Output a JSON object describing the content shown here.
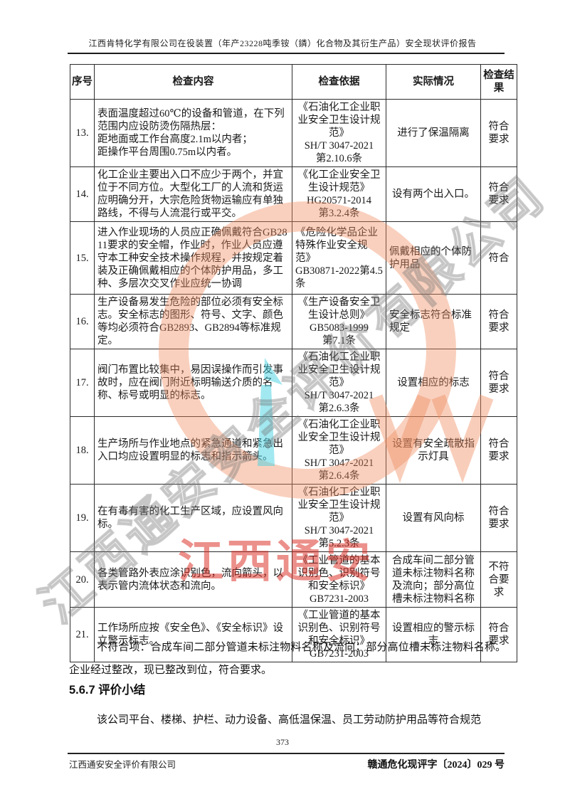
{
  "page": {
    "header_title": "江西肯特化学有限公司在役装置（年产23228吨季铵（鏻）化合物及其衍生产品）安全现状评价报告",
    "page_number": "373",
    "footer_left": "江西通安安全评价有限公司",
    "footer_right": "赣通危化现评字〔2024〕029 号"
  },
  "table": {
    "headers": [
      "序号",
      "检查内容",
      "检查依据",
      "实际情况",
      "检查结果"
    ],
    "rows": [
      {
        "no": "13.",
        "content": "表面温度超过60℃的设备和管道，在下列范围内应设防烫伤隔热层：\n距地面或工作台高度2.1m以内者；\n距操作平台周围0.75m以内者。",
        "basis": "《石油化工企业职业安全卫生设计规范》\nSH/T 3047-2021\n第2.10.6条",
        "actual": "进行了保温隔离",
        "result": "符合要求"
      },
      {
        "no": "14.",
        "content": "化工企业主要出入口不应少于两个，并宜位于不同方位。大型化工厂的人流和货运应明确分开，大宗危险货物运输应有单独路线，不得与人流混行或平交。",
        "basis": "《化工企业安全卫生设计规范》\nHG20571-2014\n第3.2.4条",
        "actual": "设有两个出入口。",
        "result": "符合要求"
      },
      {
        "no": "15.",
        "content": "进入作业现场的人员应正确佩戴符合GB2811要求的安全帽，作业时，作业人员应遵守本工种安全技术操作规程，并按规定着装及正确佩戴相应的个体防护用品，多工种、多层次交叉作业应统一协调",
        "basis": "《危险化学品企业特殊作业安全规范》\nGB30871-2022第4.5条",
        "basis_align": "left",
        "actual": "佩戴相应的个体防护用品",
        "actual_align": "left",
        "result": "符合"
      },
      {
        "no": "16.",
        "content": "生产设备易发生危险的部位必须有安全标志。安全标志的图形、符号、文字、颜色等均必须符合GB2893、GB2894等标准规定。",
        "basis": "《生产设备安全卫生设计总则》\nGB5083-1999\n第7.1条",
        "actual": "安全标志符合标准规定",
        "actual_align": "left",
        "result": "符合要求"
      },
      {
        "no": "17.",
        "content": "阀门布置比较集中，易因误操作而引发事故时，应在阀门附近标明输送介质的名称、标号或明显的标志。",
        "basis": "《石油化工企业职业安全卫生设计规范》\nSH/T 3047-2021\n第2.6.3条",
        "actual": "设置相应的标志",
        "result": "符合要求"
      },
      {
        "no": "18.",
        "content": "生产场所与作业地点的紧急通道和紧急出入口均应设置明显的标志和指示箭头。",
        "basis": "《石油化工企业职业安全卫生设计规范》\nSH/T 3047-2021\n第2.6.4条",
        "actual": "设置有安全疏散指示灯具",
        "result": "符合要求"
      },
      {
        "no": "19.",
        "content": "在有毒有害的化工生产区域，应设置风向标。",
        "basis": "《石油化工企业职业安全卫生设计规范》\nSH/T 3047-2021\n第5.2.3条",
        "actual": "设置有风向标",
        "result": "符合要求"
      },
      {
        "no": "20.",
        "content": "各类管路外表应涂识别色，流向箭头，以表示管内流体状态和流向。",
        "basis": "《工业管道的基本识别色、识别符号和安全标识》\nGB7231-2003",
        "actual": "合成车间二部分管道未标注物料名称及流向；部分高位槽未标注物料名称",
        "result": "不符合要求"
      },
      {
        "no": "21.",
        "content": "工作场所应按《安全色》、《安全标识》设立警示标志。",
        "basis": "《工业管道的基本识别色、识别符号和安全标识》\nGB7231-2003",
        "actual": "设置相应的警示标志",
        "result": "符合要求"
      }
    ]
  },
  "body": {
    "paragraph1": "不符合项：合成车间二部分管道未标注物料名称及流向；部分高位槽未标注物料名称。企业经过整改，现已整改到位，符合要求。",
    "section_heading": "5.6.7 评价小结",
    "paragraph2": "该公司平台、楼梯、护栏、动力设备、高低温保温、员工劳动防护用品等符合规范"
  },
  "watermarks": {
    "diagonal_text": "江西通安安全评价有限公司",
    "red_text": "江西通安",
    "colors": {
      "orange": "#ef8a5c",
      "red": "#db2a20",
      "cyan": "#45d2e2",
      "gray": "#7d7d7d"
    }
  }
}
